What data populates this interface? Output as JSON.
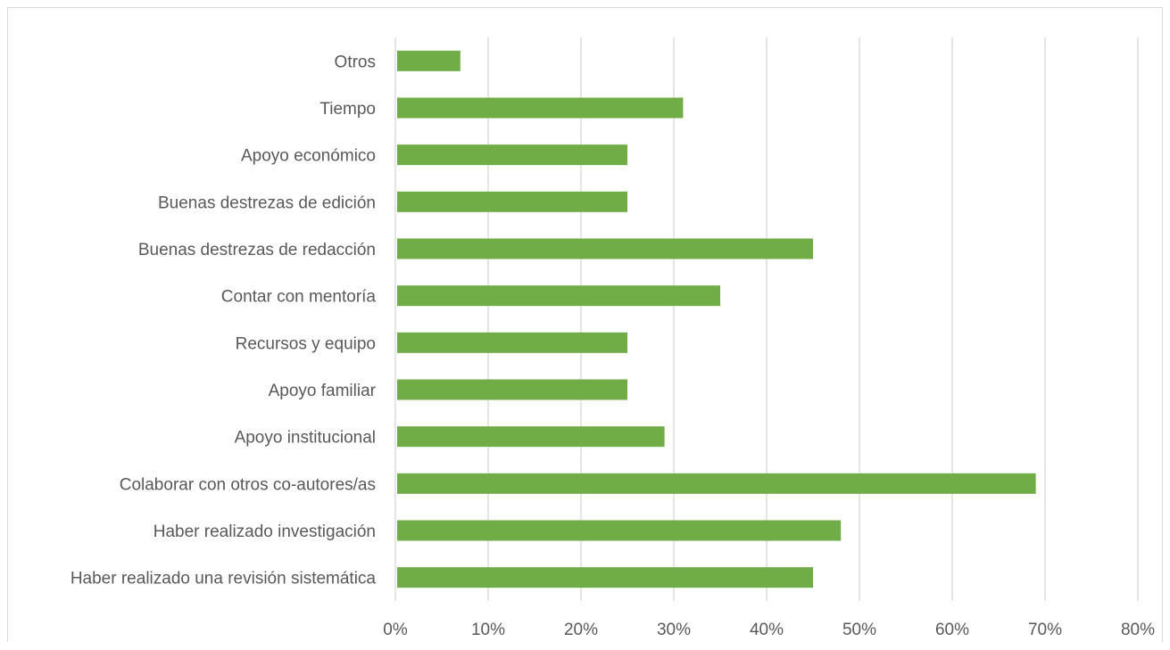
{
  "chart_data": {
    "type": "bar",
    "orientation": "horizontal",
    "categories": [
      "Otros",
      "Tiempo",
      "Apoyo económico",
      "Buenas destrezas de edición",
      "Buenas destrezas de redacción",
      "Contar con mentoría",
      "Recursos y equipo",
      "Apoyo familiar",
      "Apoyo institucional",
      "Colaborar con otros co-autores/as",
      "Haber realizado investigación",
      "Haber realizado una revisión sistemática"
    ],
    "values": [
      7,
      31,
      25,
      25,
      45,
      35,
      25,
      25,
      29,
      69,
      48,
      45
    ],
    "value_unit": "%",
    "xlim": [
      0,
      80
    ],
    "x_ticks": [
      "0%",
      "10%",
      "20%",
      "30%",
      "40%",
      "50%",
      "60%",
      "70%",
      "80%"
    ],
    "title": "",
    "xlabel": "",
    "ylabel": "",
    "grid": "vertical",
    "legend": "none",
    "colors": {
      "bar": "#70ad47",
      "grid": "#d9d9d9",
      "text": "#595959"
    }
  }
}
